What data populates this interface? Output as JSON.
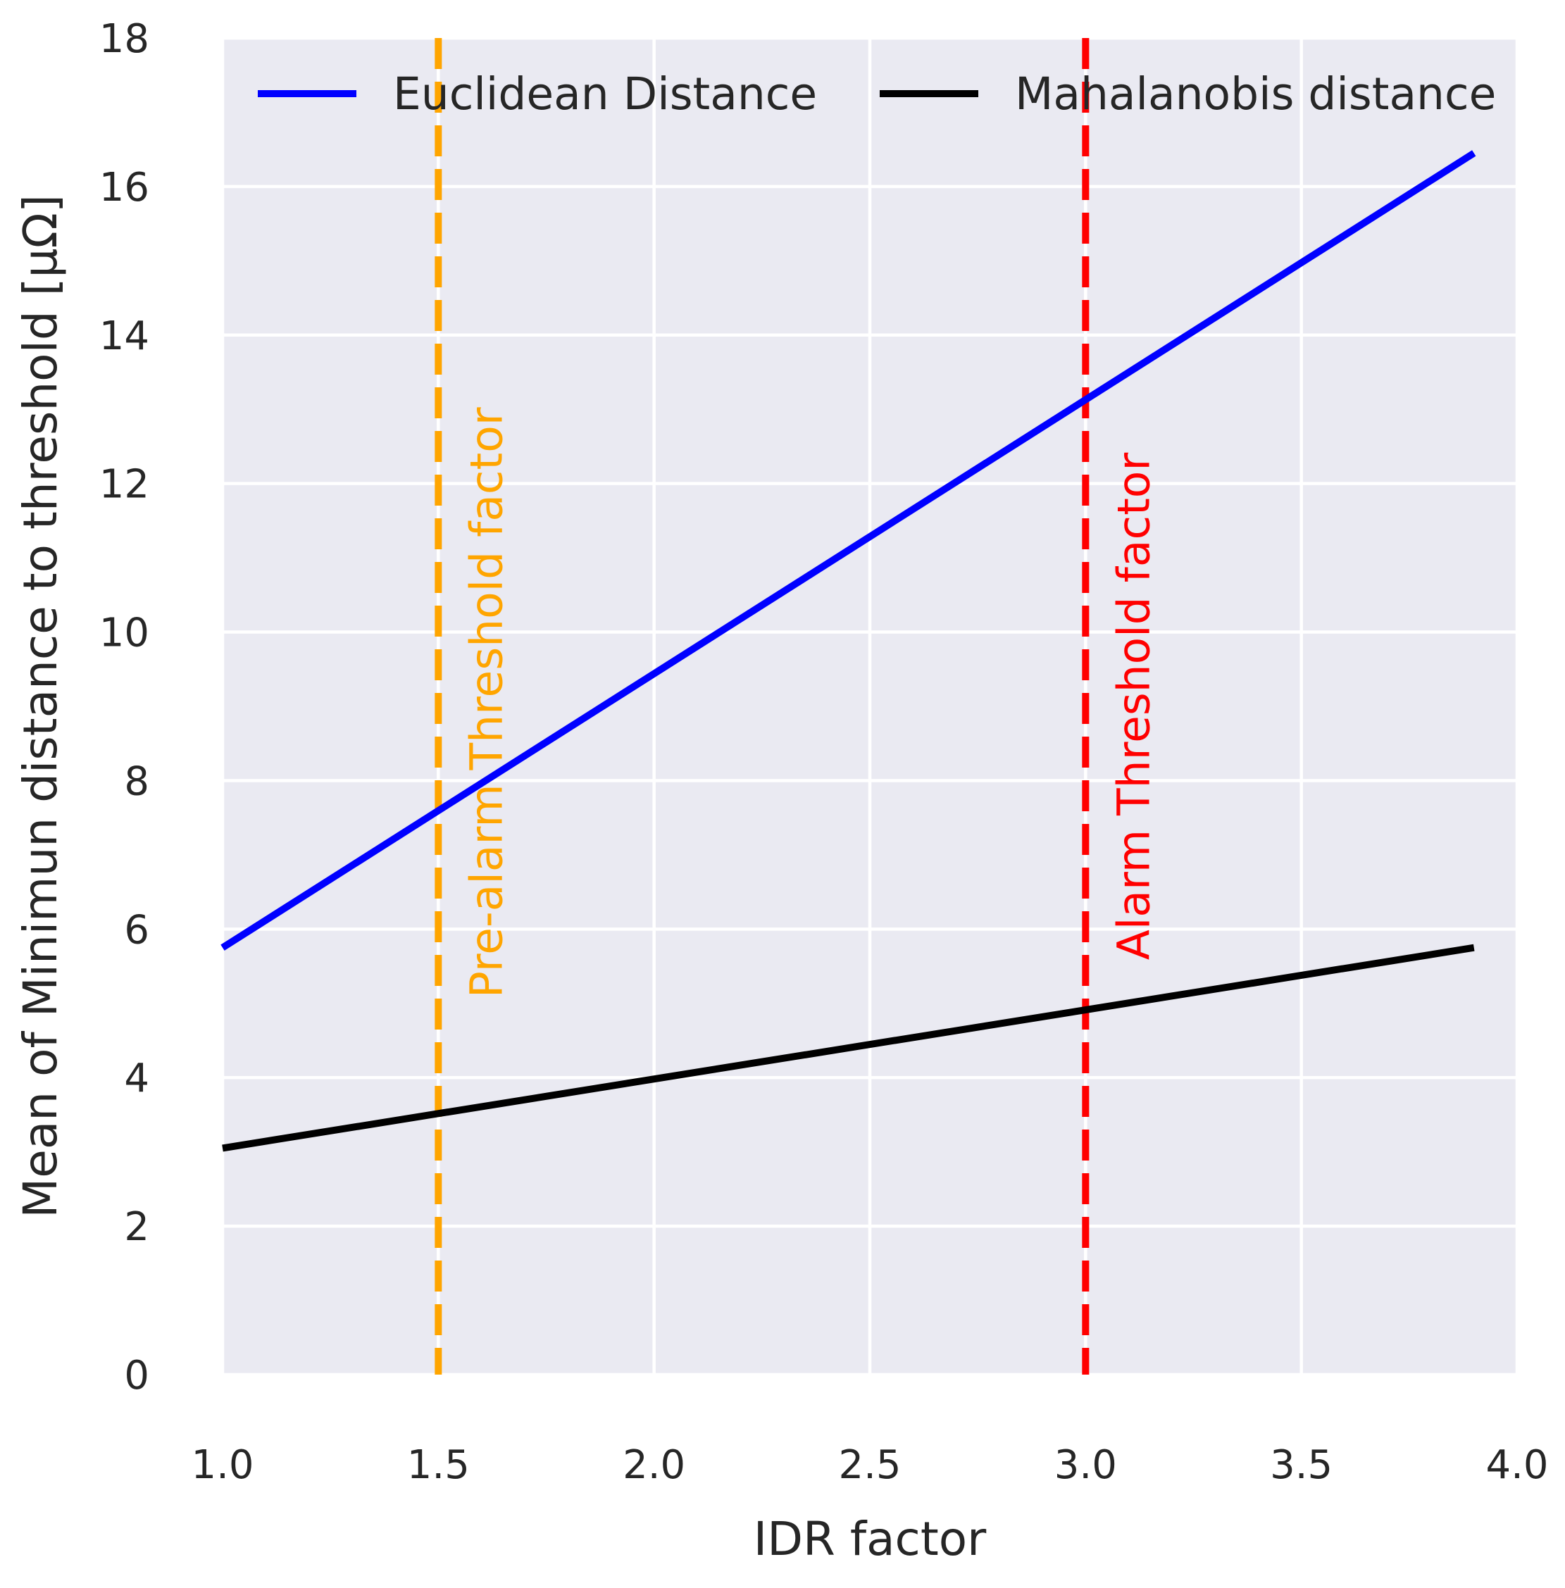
{
  "chart_data": {
    "type": "line",
    "title": "",
    "xlabel": "IDR factor",
    "ylabel": "Mean of Minimun distance to threshold [μΩ]",
    "xlim": [
      1.0,
      4.0
    ],
    "ylim": [
      0,
      18
    ],
    "xticks": [
      1.0,
      1.5,
      2.0,
      2.5,
      3.0,
      3.5,
      4.0
    ],
    "xtick_labels": [
      "1.0",
      "1.5",
      "2.0",
      "2.5",
      "3.0",
      "3.5",
      "4.0"
    ],
    "yticks": [
      0,
      2,
      4,
      6,
      8,
      10,
      12,
      14,
      16,
      18
    ],
    "ytick_labels": [
      "0",
      "2",
      "4",
      "6",
      "8",
      "10",
      "12",
      "14",
      "16",
      "18"
    ],
    "grid": true,
    "legend_position": "top",
    "series": [
      {
        "name": "Euclidean Distance",
        "color": "#0000ff",
        "x": [
          1.0,
          3.9
        ],
        "y": [
          5.75,
          16.45
        ]
      },
      {
        "name": "Mahalanobis distance",
        "color": "#000000",
        "x": [
          1.0,
          3.9
        ],
        "y": [
          3.05,
          5.75
        ]
      }
    ],
    "vlines": [
      {
        "x": 1.5,
        "color": "#ffa500",
        "label": "Pre-alarm Threshold factor",
        "label_y": [
          5.2,
          12.9
        ]
      },
      {
        "x": 3.0,
        "color": "#ff0000",
        "label": "Alarm Threshold factor",
        "label_y": [
          5.7,
          12.3
        ]
      }
    ],
    "style": {
      "background": "#eaeaf2",
      "grid_color": "#ffffff",
      "text_color": "#262626"
    }
  }
}
